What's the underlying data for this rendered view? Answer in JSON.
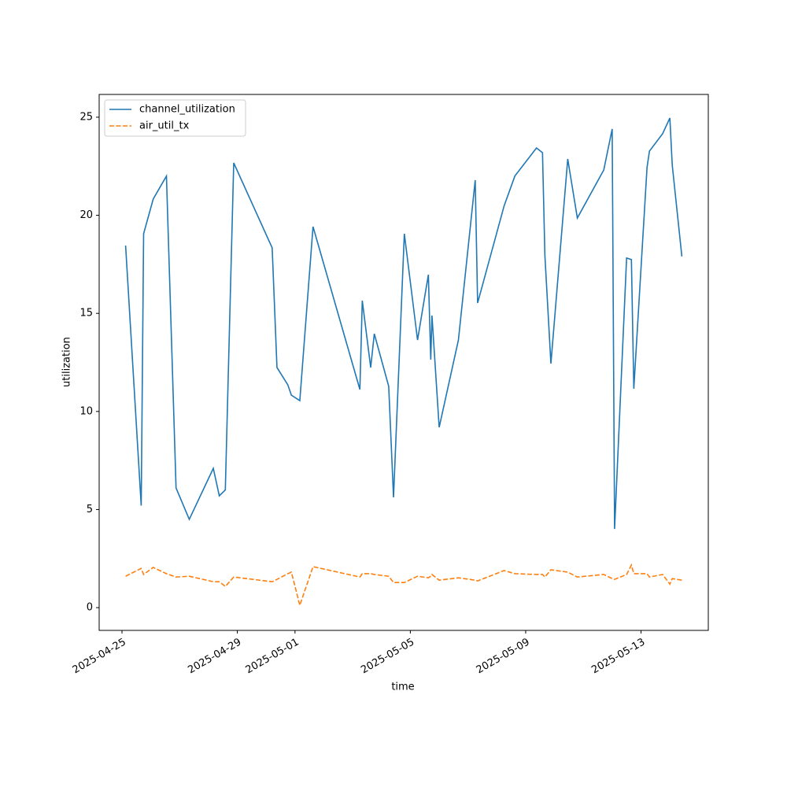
{
  "chart_data": {
    "type": "line",
    "xlabel": "time",
    "ylabel": "utilization",
    "x": [
      "2025-04-25T03:00",
      "2025-04-25T16:00",
      "2025-04-25T18:00",
      "2025-04-26T02:00",
      "2025-04-26T13:00",
      "2025-04-26T21:00",
      "2025-04-27T08:00",
      "2025-04-28T04:00",
      "2025-04-28T09:00",
      "2025-04-28T14:00",
      "2025-04-28T21:00",
      "2025-04-30T05:00",
      "2025-04-30T09:00",
      "2025-04-30T18:00",
      "2025-04-30T21:00",
      "2025-05-01T04:00",
      "2025-05-01T15:00",
      "2025-05-03T06:00",
      "2025-05-03T08:00",
      "2025-05-03T15:00",
      "2025-05-03T18:00",
      "2025-05-04T06:00",
      "2025-05-04T10:00",
      "2025-05-04T19:00",
      "2025-05-05T06:00",
      "2025-05-05T15:00",
      "2025-05-05T17:00",
      "2025-05-05T18:00",
      "2025-05-06T00:00",
      "2025-05-06T16:00",
      "2025-05-07T06:00",
      "2025-05-07T08:00",
      "2025-05-08T06:00",
      "2025-05-08T15:00",
      "2025-05-09T09:00",
      "2025-05-09T14:00",
      "2025-05-09T16:00",
      "2025-05-09T21:00",
      "2025-05-10T11:00",
      "2025-05-10T19:00",
      "2025-05-11T17:00",
      "2025-05-12T00:00",
      "2025-05-12T02:00",
      "2025-05-12T12:00",
      "2025-05-12T16:00",
      "2025-05-12T18:00",
      "2025-05-13T05:00",
      "2025-05-13T07:00",
      "2025-05-13T18:00",
      "2025-05-14T00:00",
      "2025-05-14T02:00",
      "2025-05-14T10:00"
    ],
    "series": [
      {
        "name": "channel_utilization",
        "color": "#1f77b4",
        "style": "solid",
        "values": [
          18.46,
          5.2,
          19.06,
          20.83,
          22.0,
          6.1,
          4.5,
          7.1,
          5.7,
          6.0,
          22.67,
          18.34,
          12.24,
          11.36,
          10.83,
          10.55,
          19.42,
          11.12,
          15.65,
          12.24,
          13.96,
          11.28,
          5.62,
          19.06,
          13.64,
          16.97,
          12.64,
          14.89,
          9.19,
          13.64,
          21.79,
          15.53,
          20.47,
          22.0,
          23.43,
          23.19,
          17.94,
          12.44,
          22.87,
          19.86,
          22.31,
          24.4,
          4.01,
          17.82,
          17.74,
          11.16,
          22.43,
          23.27,
          24.16,
          24.96,
          22.55,
          17.9
        ]
      },
      {
        "name": "air_util_tx",
        "color": "#ff7f0e",
        "style": "dashed",
        "values": [
          1.6,
          2.0,
          1.69,
          2.05,
          1.73,
          1.56,
          1.6,
          1.32,
          1.32,
          1.08,
          1.56,
          1.32,
          1.44,
          1.73,
          1.81,
          0.12,
          2.09,
          1.56,
          1.73,
          1.73,
          1.69,
          1.6,
          1.28,
          1.28,
          1.6,
          1.52,
          1.6,
          1.69,
          1.4,
          1.52,
          1.4,
          1.36,
          1.89,
          1.73,
          1.69,
          1.69,
          1.56,
          1.93,
          1.81,
          1.56,
          1.69,
          1.48,
          1.44,
          1.69,
          2.17,
          1.73,
          1.73,
          1.56,
          1.69,
          1.2,
          1.48,
          1.4
        ]
      }
    ],
    "xlim": [
      "2025-04-24T05:00",
      "2025-05-15T08:00"
    ],
    "xticks": [
      "2025-04-25",
      "2025-04-29",
      "2025-05-01",
      "2025-05-05",
      "2025-05-09",
      "2025-05-13"
    ],
    "ylim": [
      -1.16,
      26.16
    ],
    "yticks": [
      0,
      5,
      10,
      15,
      20,
      25
    ],
    "legend": "upper left",
    "grid": false
  }
}
